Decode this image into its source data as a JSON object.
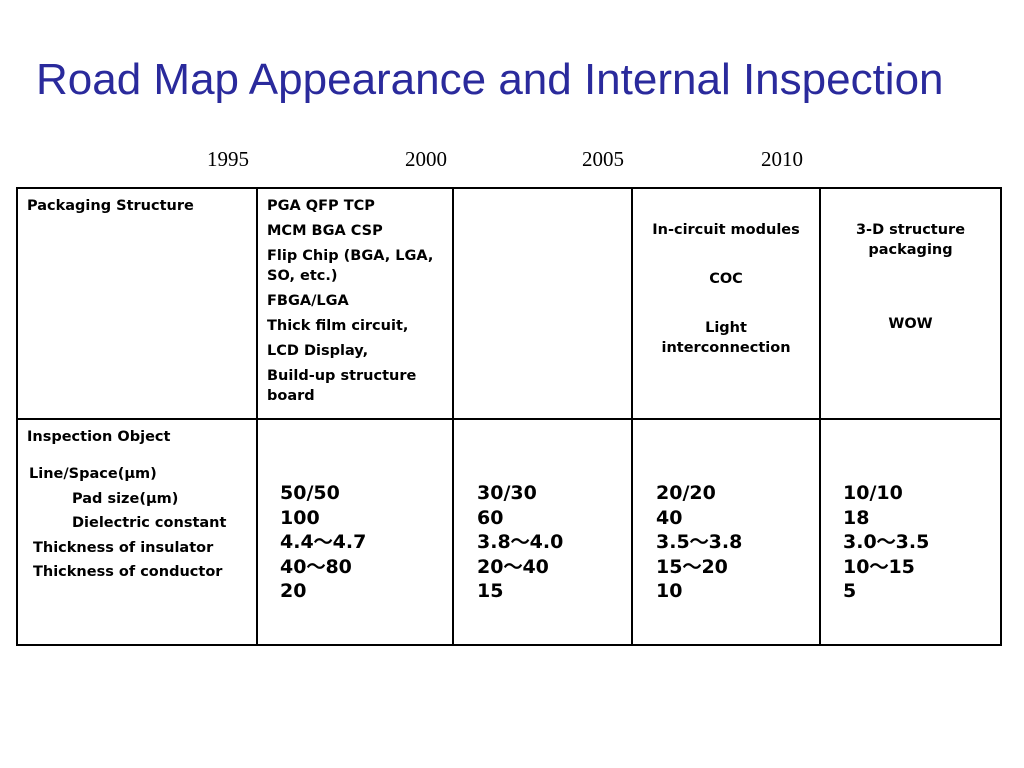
{
  "title": "Road Map Appearance and Internal Inspection",
  "years": [
    "1995",
    "2000",
    "2005",
    "2010"
  ],
  "table": {
    "row1": {
      "label": "Packaging Structure",
      "col1": [
        "PGA QFP TCP",
        "MCM BGA CSP",
        "Flip Chip (BGA, LGA, SO, etc.)",
        "FBGA/LGA",
        "Thick film circuit,",
        "LCD Display,",
        "Build-up structure board"
      ],
      "col2": "",
      "col3": [
        "In-circuit modules",
        "COC",
        "Light interconnection"
      ],
      "col4": [
        "3-D structure packaging",
        "WOW"
      ]
    },
    "row2": {
      "label": "Inspection Object",
      "items": [
        "Line/Space(μm)",
        "Pad size(μm)",
        "Dielectric constant",
        "Thickness of insulator",
        "Thickness of conductor"
      ],
      "col1": [
        "50/50",
        "100",
        "4.4～4.7",
        "40～80",
        "20"
      ],
      "col2": [
        "30/30",
        "60",
        "3.8～4.0",
        "20～40",
        "15"
      ],
      "col3": [
        "20/20",
        "40",
        "3.5～3.8",
        "15～20",
        "10"
      ],
      "col4": [
        "10/10",
        "18",
        "3.0～3.5",
        "10～15",
        "5"
      ]
    }
  }
}
